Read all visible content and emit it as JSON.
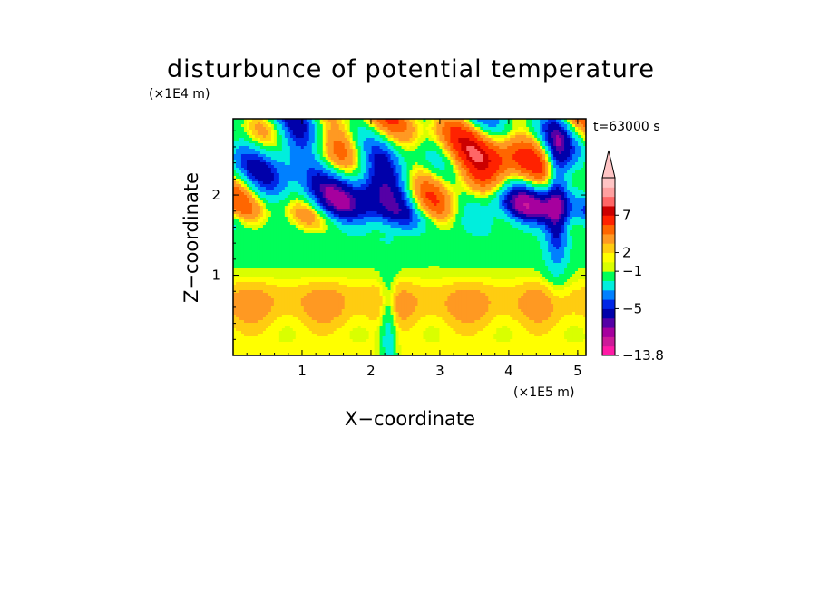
{
  "chart_data": {
    "type": "heatmap",
    "title": "disturbunce of potential temperature",
    "xlabel": "X−coordinate",
    "ylabel": "Z−coordinate",
    "x_scale_label": "(×1E5 m)",
    "y_scale_label": "(×1E4 m)",
    "time_label": "t=63000 s",
    "xlim": [
      0,
      5.12
    ],
    "ylim": [
      0,
      2.95
    ],
    "x_ticks": [
      {
        "value": 1,
        "label": "1"
      },
      {
        "value": 2,
        "label": "2"
      },
      {
        "value": 3,
        "label": "3"
      },
      {
        "value": 4,
        "label": "4"
      },
      {
        "value": 5,
        "label": "5"
      }
    ],
    "y_ticks": [
      {
        "value": 1,
        "label": "1"
      },
      {
        "value": 2,
        "label": "2"
      }
    ],
    "colorbar": {
      "colors": [
        "#ff1aa6",
        "#cc1a99",
        "#a6009e",
        "#5500a6",
        "#0000aa",
        "#0026e6",
        "#0080ff",
        "#00eedd",
        "#00ff59",
        "#d9ff00",
        "#ffff00",
        "#ffcc11",
        "#ff9922",
        "#ff6600",
        "#ff2200",
        "#cc0000",
        "#ff6666",
        "#ffa0a0",
        "#ffc4c4"
      ],
      "labels": [
        {
          "value": 7,
          "label": "7"
        },
        {
          "value": 2,
          "label": "2"
        },
        {
          "value": -1,
          "label": "−1"
        },
        {
          "value": -5,
          "label": "−5"
        },
        {
          "value": -13.8,
          "label": "−13.8"
        }
      ],
      "extend_max": true
    }
  }
}
